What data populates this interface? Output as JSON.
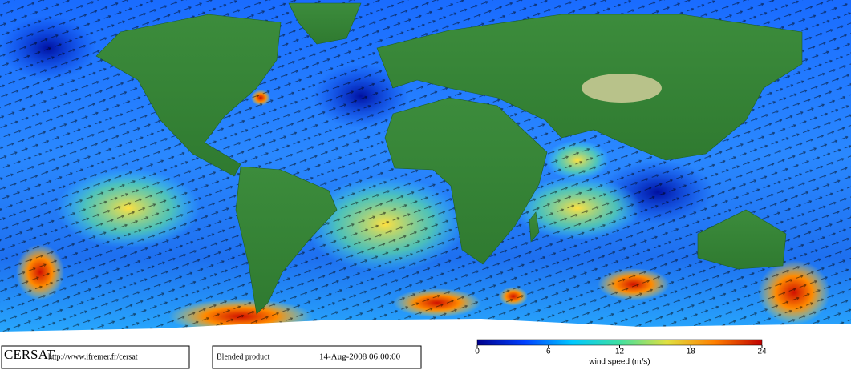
{
  "footer": {
    "brand": "CERSAT",
    "url": "http://www.ifremer.fr/cersat",
    "product": "Blended product",
    "date": "14-Aug-2008 06:00:00"
  },
  "colorbar": {
    "label": "wind speed (m/s)",
    "lim": [
      0,
      24
    ],
    "ticks": [
      0,
      6,
      12,
      18,
      24
    ],
    "colors": [
      "#00008c",
      "#0040ff",
      "#00c8ff",
      "#40e0a0",
      "#e0e040",
      "#ff8000",
      "#c00000"
    ]
  }
}
